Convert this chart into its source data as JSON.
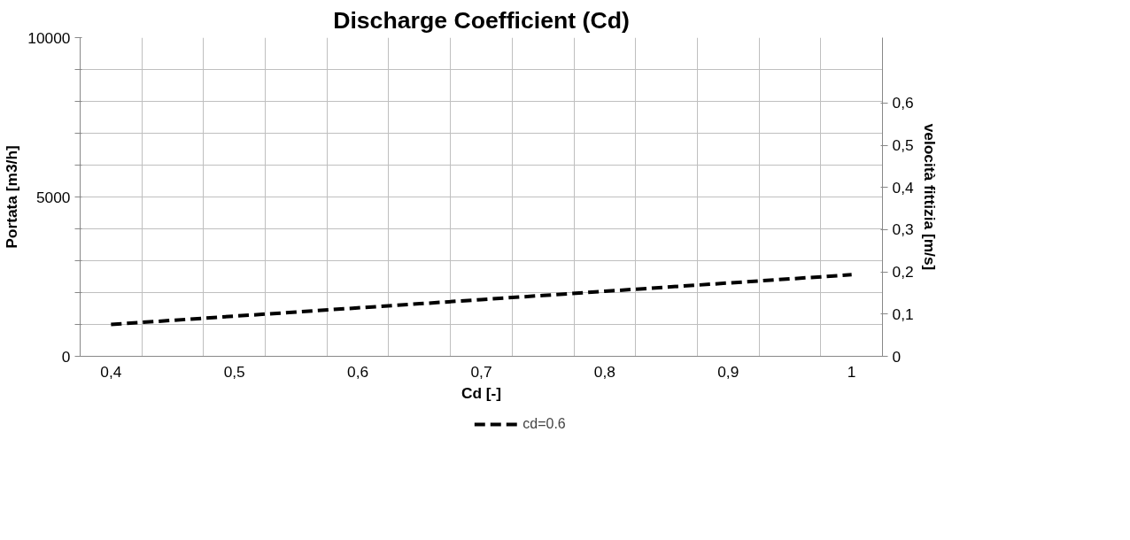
{
  "chart_data": {
    "type": "line",
    "title": "Discharge Coefficient (Cd)",
    "xlabel": "Cd [-]",
    "ylabel": "Portata [m3/h]",
    "y2label": "velocità fittizia [m/s]",
    "categories": [
      "0,4",
      null,
      "0,5",
      null,
      "0,6",
      null,
      "0,7",
      null,
      "0,8",
      null,
      "0,9",
      null,
      "1"
    ],
    "series": [
      {
        "name": "cd=0.6",
        "color": "#000000",
        "line_style": "dashed",
        "values": [
          1000,
          1130,
          1260,
          1390,
          1520,
          1650,
          1780,
          1910,
          2040,
          2170,
          2300,
          2430,
          2560
        ]
      }
    ],
    "ylim": [
      0,
      10000
    ],
    "yticks": [
      0,
      {
        "value": 1000,
        "label": null
      },
      {
        "value": 2000,
        "label": null
      },
      {
        "value": 3000,
        "label": null
      },
      {
        "value": 4000,
        "label": null
      },
      5000,
      {
        "value": 6000,
        "label": null
      },
      {
        "value": 7000,
        "label": null
      },
      {
        "value": 8000,
        "label": null
      },
      {
        "value": 9000,
        "label": null
      },
      10000
    ],
    "y2lim": [
      0,
      0.755
    ],
    "y2ticks": [
      {
        "value": 0,
        "label": "0"
      },
      {
        "value": 0.1,
        "label": "0,1"
      },
      {
        "value": 0.2,
        "label": "0,2"
      },
      {
        "value": 0.3,
        "label": "0,3"
      },
      {
        "value": 0.4,
        "label": "0,4"
      },
      {
        "value": 0.5,
        "label": "0,5"
      },
      {
        "value": 0.6,
        "label": "0,6"
      }
    ],
    "grid": true,
    "legend": "bottom",
    "marker": "none"
  }
}
